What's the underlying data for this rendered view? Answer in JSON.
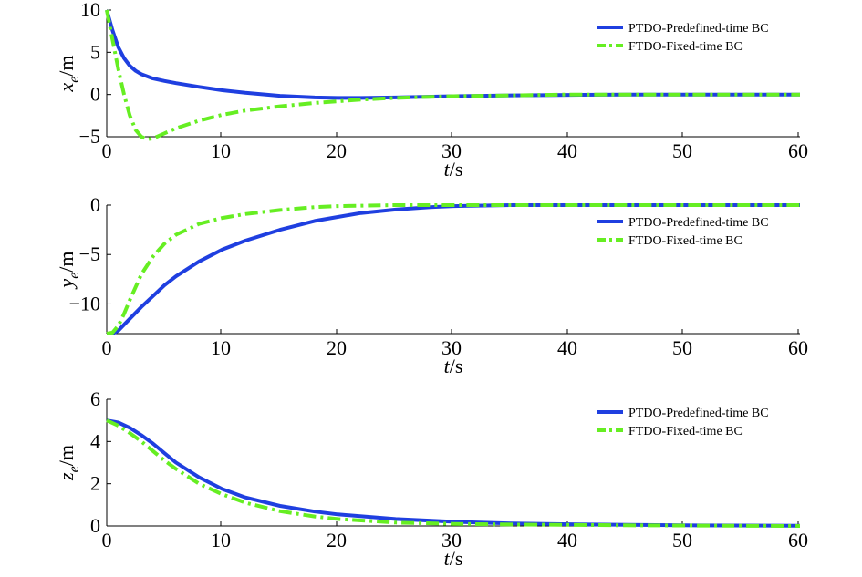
{
  "chart_data": [
    {
      "type": "line",
      "ylabel_var": "x",
      "ylabel_sub": "e",
      "ylabel_unit": "/m",
      "xlabel_var": "t",
      "xlabel_unit": "/s",
      "xlim": [
        0,
        60
      ],
      "ylim": [
        -5,
        10
      ],
      "xticks": [
        "0",
        "10",
        "20",
        "30",
        "40",
        "50",
        "60"
      ],
      "yticks": [
        "10",
        "5",
        "0",
        "−5"
      ],
      "ytick_values": [
        10,
        5,
        0,
        -5
      ],
      "legend_position": "top-right",
      "series": [
        {
          "name": "PTDO-Predefined-time BC",
          "color": "#1f3fe0",
          "style": "solid",
          "x": [
            0,
            0.5,
            1,
            1.5,
            2,
            2.5,
            3,
            4,
            5,
            6,
            8,
            10,
            12,
            15,
            18,
            20,
            22,
            25,
            30,
            35,
            40,
            45,
            50,
            55,
            60
          ],
          "y": [
            10,
            7.6,
            5.6,
            4.3,
            3.4,
            2.8,
            2.4,
            1.9,
            1.6,
            1.35,
            0.9,
            0.5,
            0.2,
            -0.15,
            -0.35,
            -0.4,
            -0.4,
            -0.35,
            -0.2,
            -0.1,
            -0.05,
            0,
            0,
            0,
            0
          ]
        },
        {
          "name": "FTDO-Fixed-time BC",
          "color": "#66ee22",
          "style": "dashdot",
          "x": [
            0,
            0.5,
            1,
            1.5,
            2,
            2.5,
            3,
            3.5,
            4,
            5,
            6,
            8,
            10,
            12,
            15,
            18,
            20,
            22,
            25,
            30,
            35,
            40,
            45,
            50,
            55,
            60
          ],
          "y": [
            10,
            6.5,
            3.0,
            0.0,
            -2.5,
            -4.2,
            -5.0,
            -5.3,
            -5.2,
            -4.6,
            -4.0,
            -3.1,
            -2.4,
            -1.9,
            -1.4,
            -1.0,
            -0.8,
            -0.6,
            -0.4,
            -0.2,
            -0.1,
            0,
            0,
            0,
            0,
            0
          ]
        }
      ]
    },
    {
      "type": "line",
      "ylabel_var": "y",
      "ylabel_sub": "e",
      "ylabel_unit": "/m",
      "xlabel_var": "t",
      "xlabel_unit": "/s",
      "xlim": [
        0,
        60
      ],
      "ylim": [
        -13,
        0
      ],
      "xticks": [
        "0",
        "10",
        "20",
        "30",
        "40",
        "50",
        "60"
      ],
      "yticks": [
        "0",
        "−5",
        "−10"
      ],
      "ytick_values": [
        0,
        -5,
        -10
      ],
      "legend_position": "top-right",
      "series": [
        {
          "name": "PTDO-Predefined-time BC",
          "color": "#1f3fe0",
          "style": "solid",
          "x": [
            0,
            0.5,
            1,
            1.5,
            2,
            3,
            4,
            5,
            6,
            8,
            10,
            12,
            15,
            18,
            20,
            22,
            25,
            28,
            30,
            35,
            40,
            45,
            50,
            55,
            60
          ],
          "y": [
            -13,
            -13,
            -12.7,
            -12.1,
            -11.5,
            -10.3,
            -9.2,
            -8.1,
            -7.2,
            -5.7,
            -4.5,
            -3.6,
            -2.5,
            -1.6,
            -1.2,
            -0.8,
            -0.45,
            -0.2,
            -0.1,
            0,
            0,
            0,
            0,
            0,
            0
          ]
        },
        {
          "name": "FTDO-Fixed-time BC",
          "color": "#66ee22",
          "style": "dashdot",
          "x": [
            0,
            0.5,
            1,
            1.5,
            2,
            3,
            4,
            5,
            6,
            8,
            10,
            12,
            15,
            18,
            20,
            25,
            30,
            35,
            40,
            45,
            50,
            55,
            60
          ],
          "y": [
            -13,
            -12.9,
            -12.2,
            -11.0,
            -9.6,
            -7.0,
            -5.2,
            -3.9,
            -3.0,
            -1.9,
            -1.3,
            -0.9,
            -0.5,
            -0.2,
            -0.1,
            0,
            0,
            0,
            0,
            0,
            0,
            0,
            0
          ]
        }
      ]
    },
    {
      "type": "line",
      "ylabel_var": "z",
      "ylabel_sub": "e",
      "ylabel_unit": "/m",
      "xlabel_var": "t",
      "xlabel_unit": "/s",
      "xlim": [
        0,
        60
      ],
      "ylim": [
        0,
        6
      ],
      "xticks": [
        "0",
        "10",
        "20",
        "30",
        "40",
        "50",
        "60"
      ],
      "yticks": [
        "6",
        "4",
        "2",
        "0"
      ],
      "ytick_values": [
        6,
        4,
        2,
        0
      ],
      "legend_position": "top-right",
      "series": [
        {
          "name": "PTDO-Predefined-time BC",
          "color": "#1f3fe0",
          "style": "solid",
          "x": [
            0,
            1,
            2,
            3,
            4,
            5,
            6,
            8,
            10,
            12,
            15,
            18,
            20,
            25,
            30,
            35,
            40,
            45,
            50,
            55,
            60
          ],
          "y": [
            5.0,
            4.9,
            4.65,
            4.3,
            3.9,
            3.45,
            3.0,
            2.3,
            1.75,
            1.35,
            0.95,
            0.68,
            0.55,
            0.33,
            0.2,
            0.12,
            0.08,
            0.05,
            0.03,
            0.02,
            0.01
          ]
        },
        {
          "name": "FTDO-Fixed-time BC",
          "color": "#66ee22",
          "style": "dashdot",
          "x": [
            0,
            1,
            2,
            3,
            4,
            5,
            6,
            8,
            10,
            12,
            15,
            18,
            20,
            25,
            30,
            35,
            40,
            45,
            50,
            55,
            60
          ],
          "y": [
            5.0,
            4.75,
            4.4,
            4.0,
            3.55,
            3.1,
            2.7,
            2.0,
            1.5,
            1.1,
            0.7,
            0.45,
            0.33,
            0.16,
            0.1,
            0.07,
            0.05,
            0.03,
            0.02,
            0.01,
            0
          ]
        }
      ]
    }
  ]
}
